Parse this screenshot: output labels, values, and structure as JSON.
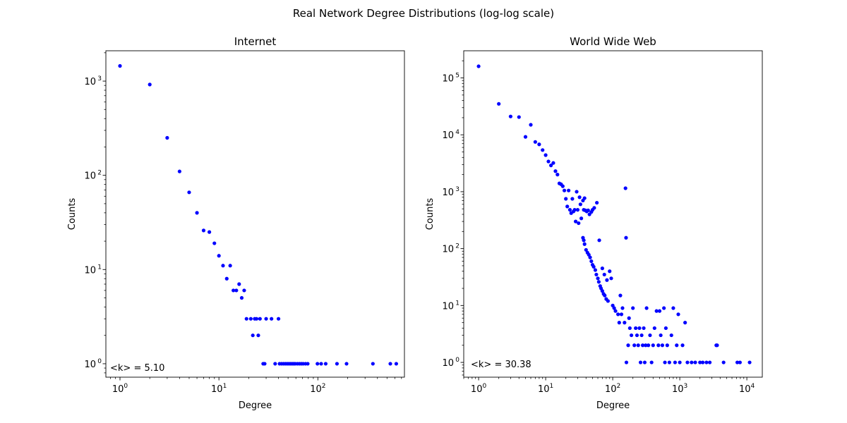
{
  "suptitle": "Real Network Degree Distributions (log-log scale)",
  "chart_data": [
    {
      "type": "scatter",
      "scale": "log-log",
      "title": "Internet",
      "xlabel": "Degree",
      "ylabel": "Counts",
      "xlim": [
        0.72,
        750
      ],
      "ylim": [
        0.72,
        2100
      ],
      "xticks": [
        {
          "value": 1,
          "base": "10",
          "exp": "0"
        },
        {
          "value": 10,
          "base": "10",
          "exp": "1"
        },
        {
          "value": 100,
          "base": "10",
          "exp": "2"
        }
      ],
      "yticks": [
        {
          "value": 1,
          "base": "10",
          "exp": "0"
        },
        {
          "value": 10,
          "base": "10",
          "exp": "1"
        },
        {
          "value": 100,
          "base": "10",
          "exp": "2"
        },
        {
          "value": 1000,
          "base": "10",
          "exp": "3"
        }
      ],
      "annotation": "<k> = 5.10",
      "color": "#0000ff",
      "points": [
        [
          1,
          1450
        ],
        [
          2,
          920
        ],
        [
          3,
          250
        ],
        [
          4,
          110
        ],
        [
          5,
          66
        ],
        [
          6,
          40
        ],
        [
          7,
          26
        ],
        [
          8,
          25
        ],
        [
          9,
          19
        ],
        [
          10,
          14
        ],
        [
          11,
          11
        ],
        [
          12,
          8
        ],
        [
          13,
          11
        ],
        [
          14,
          6
        ],
        [
          15,
          6
        ],
        [
          16,
          7
        ],
        [
          17,
          5
        ],
        [
          18,
          6
        ],
        [
          19,
          3
        ],
        [
          21,
          3
        ],
        [
          22,
          2
        ],
        [
          23,
          3
        ],
        [
          24,
          3
        ],
        [
          25,
          2
        ],
        [
          26,
          3
        ],
        [
          28,
          1
        ],
        [
          29,
          1
        ],
        [
          30,
          3
        ],
        [
          34,
          3
        ],
        [
          37,
          1
        ],
        [
          40,
          3
        ],
        [
          41,
          1
        ],
        [
          43,
          1
        ],
        [
          45,
          1
        ],
        [
          47,
          1
        ],
        [
          49,
          1
        ],
        [
          51,
          1
        ],
        [
          53,
          1
        ],
        [
          55,
          1
        ],
        [
          57,
          1
        ],
        [
          59,
          1
        ],
        [
          62,
          1
        ],
        [
          65,
          1
        ],
        [
          68,
          1
        ],
        [
          71,
          1
        ],
        [
          75,
          1
        ],
        [
          79,
          1
        ],
        [
          99,
          1
        ],
        [
          108,
          1
        ],
        [
          120,
          1
        ],
        [
          156,
          1
        ],
        [
          195,
          1
        ],
        [
          360,
          1
        ],
        [
          540,
          1
        ],
        [
          620,
          1
        ]
      ]
    },
    {
      "type": "scatter",
      "scale": "log-log",
      "title": "World Wide Web",
      "xlabel": "Degree",
      "ylabel": "Counts",
      "xlim": [
        0.6,
        17000
      ],
      "ylim": [
        0.55,
        300000
      ],
      "xticks": [
        {
          "value": 1,
          "base": "10",
          "exp": "0"
        },
        {
          "value": 10,
          "base": "10",
          "exp": "1"
        },
        {
          "value": 100,
          "base": "10",
          "exp": "2"
        },
        {
          "value": 1000,
          "base": "10",
          "exp": "3"
        },
        {
          "value": 10000,
          "base": "10",
          "exp": "4"
        }
      ],
      "yticks": [
        {
          "value": 1,
          "base": "10",
          "exp": "0"
        },
        {
          "value": 10,
          "base": "10",
          "exp": "1"
        },
        {
          "value": 100,
          "base": "10",
          "exp": "2"
        },
        {
          "value": 1000,
          "base": "10",
          "exp": "3"
        },
        {
          "value": 10000,
          "base": "10",
          "exp": "4"
        },
        {
          "value": 100000,
          "base": "10",
          "exp": "5"
        }
      ],
      "annotation": "<k> = 30.38",
      "color": "#0000ff",
      "points": [
        [
          1,
          160000
        ],
        [
          2,
          35000
        ],
        [
          3,
          21000
        ],
        [
          4,
          20500
        ],
        [
          5,
          9200
        ],
        [
          6,
          15000
        ],
        [
          7,
          7500
        ],
        [
          8,
          6800
        ],
        [
          9,
          5400
        ],
        [
          10,
          4400
        ],
        [
          11,
          3400
        ],
        [
          12,
          2900
        ],
        [
          13,
          3200
        ],
        [
          14,
          2300
        ],
        [
          15,
          2000
        ],
        [
          16,
          1400
        ],
        [
          17,
          1350
        ],
        [
          18,
          1250
        ],
        [
          19,
          1050
        ],
        [
          20,
          750
        ],
        [
          21,
          550
        ],
        [
          22,
          1050
        ],
        [
          23,
          480
        ],
        [
          24,
          420
        ],
        [
          25,
          750
        ],
        [
          26,
          450
        ],
        [
          27,
          480
        ],
        [
          28,
          300
        ],
        [
          29,
          1000
        ],
        [
          30,
          480
        ],
        [
          31,
          280
        ],
        [
          32,
          800
        ],
        [
          33,
          600
        ],
        [
          34,
          340
        ],
        [
          36,
          700
        ],
        [
          37,
          480
        ],
        [
          38,
          770
        ],
        [
          39,
          470
        ],
        [
          41,
          450
        ],
        [
          43,
          470
        ],
        [
          45,
          400
        ],
        [
          48,
          440
        ],
        [
          50,
          480
        ],
        [
          53,
          520
        ],
        [
          58,
          640
        ],
        [
          36,
          155
        ],
        [
          37,
          140
        ],
        [
          38,
          120
        ],
        [
          40,
          95
        ],
        [
          42,
          85
        ],
        [
          44,
          78
        ],
        [
          46,
          70
        ],
        [
          48,
          60
        ],
        [
          50,
          52
        ],
        [
          52,
          48
        ],
        [
          55,
          42
        ],
        [
          57,
          35
        ],
        [
          60,
          30
        ],
        [
          62,
          26
        ],
        [
          65,
          22
        ],
        [
          67,
          20
        ],
        [
          70,
          18
        ],
        [
          73,
          16
        ],
        [
          76,
          15
        ],
        [
          80,
          13
        ],
        [
          85,
          12
        ],
        [
          63,
          140
        ],
        [
          70,
          45
        ],
        [
          75,
          35
        ],
        [
          82,
          28
        ],
        [
          90,
          40
        ],
        [
          95,
          30
        ],
        [
          100,
          10
        ],
        [
          105,
          9
        ],
        [
          110,
          8
        ],
        [
          120,
          7
        ],
        [
          125,
          5
        ],
        [
          130,
          15
        ],
        [
          135,
          7
        ],
        [
          140,
          9
        ],
        [
          150,
          5
        ],
        [
          155,
          1150
        ],
        [
          158,
          155
        ],
        [
          160,
          1
        ],
        [
          170,
          2
        ],
        [
          175,
          6
        ],
        [
          180,
          4
        ],
        [
          190,
          3
        ],
        [
          200,
          9
        ],
        [
          210,
          2
        ],
        [
          220,
          4
        ],
        [
          230,
          3
        ],
        [
          240,
          2
        ],
        [
          250,
          4
        ],
        [
          260,
          1
        ],
        [
          270,
          3
        ],
        [
          280,
          2
        ],
        [
          290,
          4
        ],
        [
          300,
          1
        ],
        [
          310,
          2
        ],
        [
          320,
          9
        ],
        [
          340,
          2
        ],
        [
          360,
          3
        ],
        [
          380,
          1
        ],
        [
          400,
          2
        ],
        [
          420,
          4
        ],
        [
          450,
          8
        ],
        [
          480,
          2
        ],
        [
          500,
          8
        ],
        [
          520,
          3
        ],
        [
          550,
          2
        ],
        [
          580,
          9
        ],
        [
          600,
          1
        ],
        [
          620,
          4
        ],
        [
          650,
          2
        ],
        [
          700,
          1
        ],
        [
          750,
          3
        ],
        [
          800,
          9
        ],
        [
          850,
          1
        ],
        [
          900,
          2
        ],
        [
          950,
          7
        ],
        [
          1000,
          1
        ],
        [
          1100,
          2
        ],
        [
          1200,
          5
        ],
        [
          1300,
          1
        ],
        [
          1500,
          1
        ],
        [
          1700,
          1
        ],
        [
          2000,
          1
        ],
        [
          2200,
          1
        ],
        [
          2500,
          1
        ],
        [
          2800,
          1
        ],
        [
          3500,
          2
        ],
        [
          3600,
          2
        ],
        [
          4500,
          1
        ],
        [
          7200,
          1
        ],
        [
          7900,
          1
        ],
        [
          11000,
          1
        ]
      ]
    }
  ]
}
